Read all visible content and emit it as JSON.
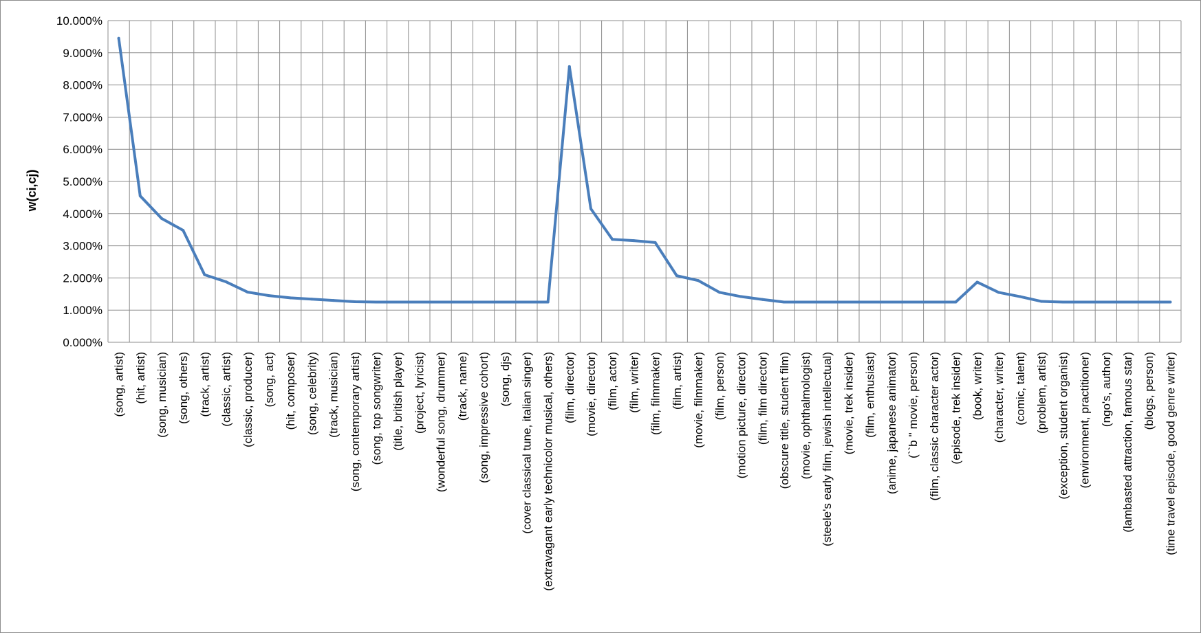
{
  "chart_data": {
    "type": "line",
    "title": "",
    "xlabel": "",
    "ylabel": "w(ci,cj)",
    "ylim": [
      0,
      10
    ],
    "y_tick_values": [
      0,
      1,
      2,
      3,
      4,
      5,
      6,
      7,
      8,
      9,
      10
    ],
    "y_tick_labels": [
      "0.000%",
      "1.000%",
      "2.000%",
      "3.000%",
      "4.000%",
      "5.000%",
      "6.000%",
      "7.000%",
      "8.000%",
      "9.000%",
      "10.000%"
    ],
    "grid": true,
    "legend": "none",
    "line_color": "#4a7ebb",
    "grid_color": "#8c8c8c",
    "categories": [
      "(song, artist)",
      "(hit, artist)",
      "(song, musician)",
      "(song, others)",
      "(track, artist)",
      "(classic, artist)",
      "(classic, producer)",
      "(song, act)",
      "(hit, composer)",
      "(song, celebrity)",
      "(track, musician)",
      "(song, contemporary artist)",
      "(song, top songwriter)",
      "(title, british player)",
      "(project, lyricist)",
      "(wonderful song, drummer)",
      "(track, name)",
      "(song, impressive cohort)",
      "(song, djs)",
      "(cover classical tune, italian singer)",
      "(extravagant early technicolor musical, others)",
      "(film, director)",
      "(movie, director)",
      "(film, actor)",
      "(film, writer)",
      "(film, filmmaker)",
      "(film, artist)",
      "(movie, filmmaker)",
      "(film, person)",
      "(motion picture, director)",
      "(film, film director)",
      "(obscure title, student film)",
      "(movie, ophthalmologist)",
      "(steele's early film, jewish intellectual)",
      "(movie, trek insider)",
      "(film, enthusiast)",
      "(anime, japanese animator)",
      "(``b '' movie, person)",
      "(film, classic character actor)",
      "(episode, trek insider)",
      "(book, writer)",
      "(character, writer)",
      "(comic, talent)",
      "(problem, artist)",
      "(exception, student organist)",
      "(environment, practitioner)",
      "(ngo's, author)",
      "(lambasted attraction, famous star)",
      "(blogs, person)",
      "(time travel episode, good genre writer)"
    ],
    "series": [
      {
        "values": [
          9.45,
          4.55,
          3.85,
          3.48,
          2.1,
          1.88,
          1.56,
          1.45,
          1.38,
          1.34,
          1.3,
          1.26,
          1.25,
          1.25,
          1.25,
          1.25,
          1.25,
          1.25,
          1.25,
          1.25,
          1.25,
          8.57,
          4.15,
          3.2,
          3.16,
          3.1,
          2.07,
          1.92,
          1.55,
          1.42,
          1.33,
          1.25,
          1.25,
          1.25,
          1.25,
          1.25,
          1.25,
          1.25,
          1.25,
          1.25,
          1.87,
          1.55,
          1.42,
          1.27,
          1.25,
          1.25,
          1.25,
          1.25,
          1.25,
          1.25
        ]
      }
    ]
  }
}
